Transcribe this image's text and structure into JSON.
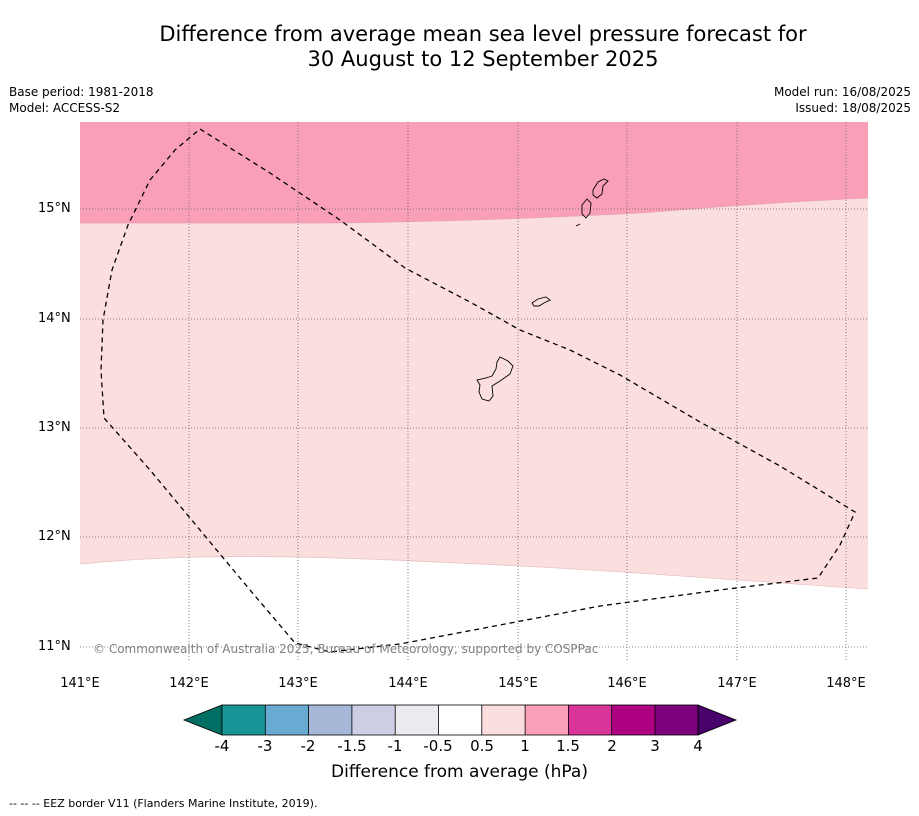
{
  "title": {
    "line1": "Difference from average mean sea level pressure forecast for",
    "line2": "30 August to 12 September 2025"
  },
  "meta": {
    "base_period": "Base period: 1981-2018",
    "model": "Model: ACCESS-S2",
    "model_run": "Model run: 16/08/2025",
    "issued": "Issued: 18/08/2025"
  },
  "map": {
    "latitude_labels": [
      "15°N",
      "14°N",
      "13°N",
      "12°N",
      "11°N"
    ],
    "longitude_labels": [
      "141°E",
      "142°E",
      "143°E",
      "144°E",
      "145°E",
      "146°E",
      "147°E",
      "148°E"
    ],
    "copyright": "© Commonwealth of Australia 2025, Bureau of Meteorology, supported by COSPPac",
    "fill_colors": {
      "band_1_to_1_5": "#f9a0b8",
      "band_0_5_to_1": "#fbdfdf",
      "band_neg0_5_to_0_5": "#ffffff"
    }
  },
  "colorbar": {
    "tick_labels": [
      "-4",
      "-3",
      "-2",
      "-1.5",
      "-1",
      "-0.5",
      "0.5",
      "1",
      "1.5",
      "2",
      "3",
      "4"
    ],
    "colors": [
      "#006e62",
      "#1a9597",
      "#69aad3",
      "#a5b8d8",
      "#cdcde6",
      "#ececf0",
      "#ffffff",
      "#fbdfdf",
      "#f9a0b8",
      "#d93499",
      "#ad0181",
      "#7c017b",
      "#4a006a"
    ],
    "title": "Difference from average (hPa)"
  },
  "footer": {
    "legend_text": "--  --  -- EEZ border V11 (Flanders Marine Institute, 2019)."
  }
}
